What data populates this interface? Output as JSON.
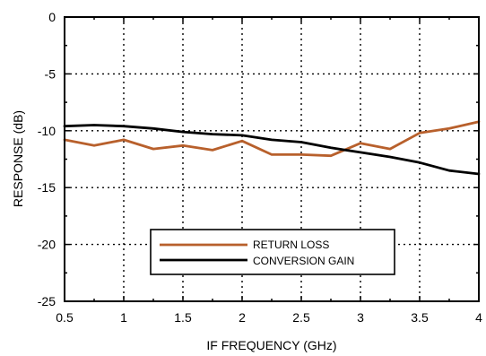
{
  "chart_data": {
    "type": "line",
    "xlabel": "IF FREQUENCY (GHz)",
    "ylabel": "RESPONSE (dB)",
    "xlim": [
      0.5,
      4
    ],
    "ylim": [
      -25,
      0
    ],
    "x_ticks": [
      "0.5",
      "1",
      "1.5",
      "2",
      "2.5",
      "3",
      "3.5",
      "4"
    ],
    "y_ticks": [
      "0",
      "-5",
      "-10",
      "-15",
      "-20",
      "-25"
    ],
    "grid": true,
    "legend_position": "lower-center",
    "series": [
      {
        "name": "RETURN LOSS",
        "color": "#b8602c",
        "x": [
          0.5,
          0.75,
          1.0,
          1.25,
          1.5,
          1.75,
          2.0,
          2.25,
          2.5,
          2.75,
          3.0,
          3.25,
          3.5,
          3.75,
          4.0
        ],
        "y": [
          -10.8,
          -11.3,
          -10.8,
          -11.6,
          -11.3,
          -11.7,
          -10.9,
          -12.1,
          -12.1,
          -12.2,
          -11.1,
          -11.6,
          -10.2,
          -9.8,
          -9.2
        ]
      },
      {
        "name": "CONVERSION GAIN",
        "color": "#000000",
        "x": [
          0.5,
          0.75,
          1.0,
          1.25,
          1.5,
          1.75,
          2.0,
          2.25,
          2.5,
          2.75,
          3.0,
          3.25,
          3.5,
          3.75,
          4.0
        ],
        "y": [
          -9.6,
          -9.5,
          -9.6,
          -9.8,
          -10.1,
          -10.3,
          -10.4,
          -10.8,
          -11.0,
          -11.5,
          -11.9,
          -12.3,
          -12.8,
          -13.5,
          -13.8
        ]
      }
    ]
  }
}
